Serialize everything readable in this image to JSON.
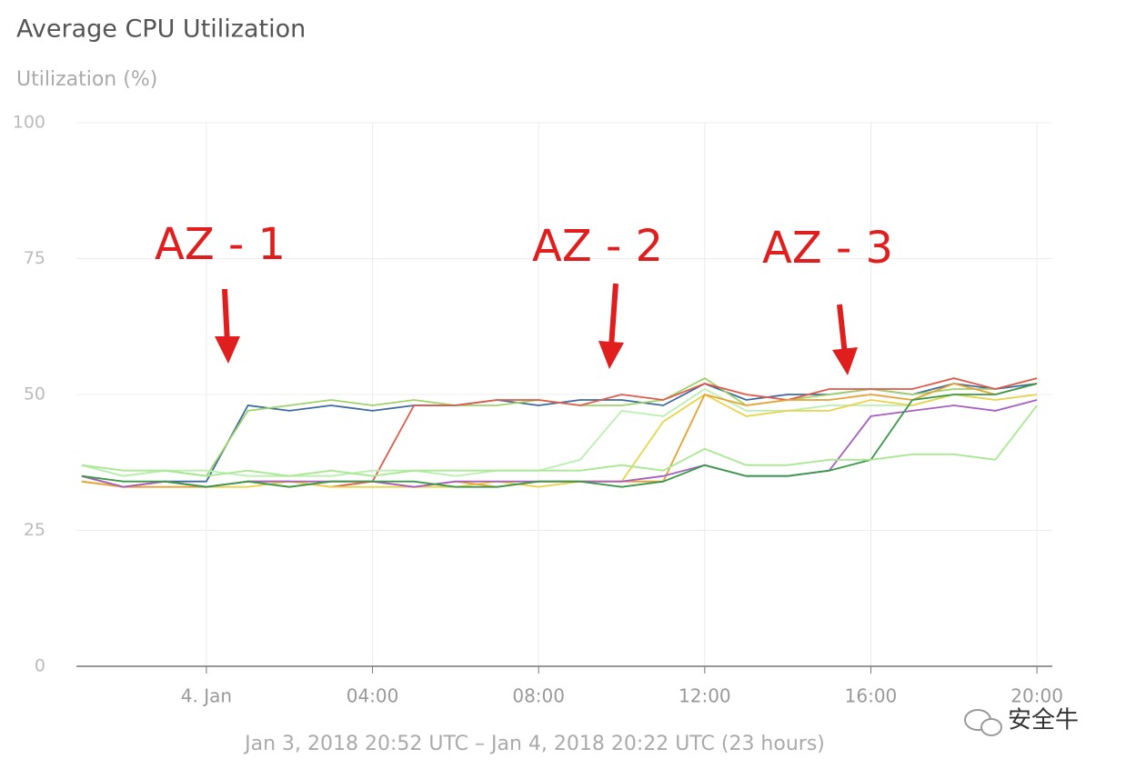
{
  "chart_data": {
    "type": "line",
    "title": "Average CPU Utilization",
    "y_label": "Utilization (%)",
    "footer": "Jan 3, 2018 20:52 UTC – Jan 4, 2018 20:22 UTC (23 hours)",
    "watermark": "安全牛",
    "annotations": [
      "AZ - 1",
      "AZ - 2",
      "AZ - 3"
    ],
    "annotation_color": "#e01e1e",
    "grid": true,
    "ylim": [
      0,
      100
    ],
    "yticks": [
      0,
      25,
      50,
      75,
      100
    ],
    "xlim": [
      -3.13,
      20.37
    ],
    "xticks": [
      {
        "value": 0,
        "label": "4. Jan"
      },
      {
        "value": 4,
        "label": "04:00"
      },
      {
        "value": 8,
        "label": "08:00"
      },
      {
        "value": 12,
        "label": "12:00"
      },
      {
        "value": 16,
        "label": "16:00"
      },
      {
        "value": 20,
        "label": "20:00"
      }
    ],
    "x": [
      -3,
      -2,
      -1,
      0,
      1,
      2,
      3,
      4,
      5,
      6,
      7,
      8,
      9,
      10,
      11,
      12,
      13,
      14,
      15,
      16,
      17,
      18,
      19,
      20
    ],
    "series": [
      {
        "color": "#3c6aa0",
        "values": [
          35,
          33,
          34,
          34,
          48,
          47,
          48,
          47,
          48,
          48,
          49,
          48,
          49,
          49,
          48,
          52,
          49,
          50,
          50,
          51,
          50,
          52,
          51,
          52
        ]
      },
      {
        "color": "#9ed36a",
        "values": [
          37,
          35,
          36,
          35,
          47,
          48,
          49,
          48,
          49,
          48,
          48,
          49,
          48,
          48,
          49,
          53,
          48,
          49,
          50,
          51,
          50,
          51,
          51,
          53
        ]
      },
      {
        "color": "#e05a4a",
        "values": [
          35,
          33,
          34,
          33,
          34,
          34,
          33,
          34,
          48,
          48,
          49,
          49,
          48,
          50,
          49,
          52,
          50,
          49,
          51,
          51,
          51,
          53,
          51,
          53
        ]
      },
      {
        "color": "#b9f0b0",
        "values": [
          37,
          35,
          36,
          36,
          35,
          35,
          35,
          36,
          36,
          35,
          36,
          36,
          38,
          47,
          46,
          51,
          47,
          47,
          48,
          48,
          48,
          50,
          49,
          50
        ]
      },
      {
        "color": "#e8d44a",
        "values": [
          34,
          33,
          34,
          33,
          33,
          34,
          33,
          33,
          33,
          33,
          34,
          33,
          34,
          34,
          45,
          50,
          46,
          47,
          47,
          49,
          48,
          50,
          49,
          50
        ]
      },
      {
        "color": "#e8a030",
        "values": [
          34,
          33,
          33,
          33,
          34,
          33,
          34,
          34,
          33,
          34,
          33,
          34,
          34,
          34,
          34,
          50,
          48,
          49,
          49,
          50,
          49,
          52,
          50,
          52
        ]
      },
      {
        "color": "#a560c0",
        "values": [
          35,
          33,
          34,
          33,
          34,
          34,
          34,
          34,
          33,
          34,
          34,
          34,
          34,
          34,
          35,
          37,
          35,
          35,
          36,
          46,
          47,
          48,
          47,
          49
        ]
      },
      {
        "color": "#3a9a4a",
        "values": [
          35,
          34,
          34,
          33,
          34,
          33,
          34,
          34,
          34,
          33,
          33,
          34,
          34,
          33,
          34,
          37,
          35,
          35,
          36,
          38,
          49,
          50,
          50,
          52
        ]
      },
      {
        "color": "#a8e890",
        "values": [
          37,
          36,
          36,
          35,
          36,
          35,
          36,
          35,
          36,
          36,
          36,
          36,
          36,
          37,
          36,
          40,
          37,
          37,
          38,
          38,
          39,
          39,
          38,
          48
        ]
      }
    ]
  }
}
